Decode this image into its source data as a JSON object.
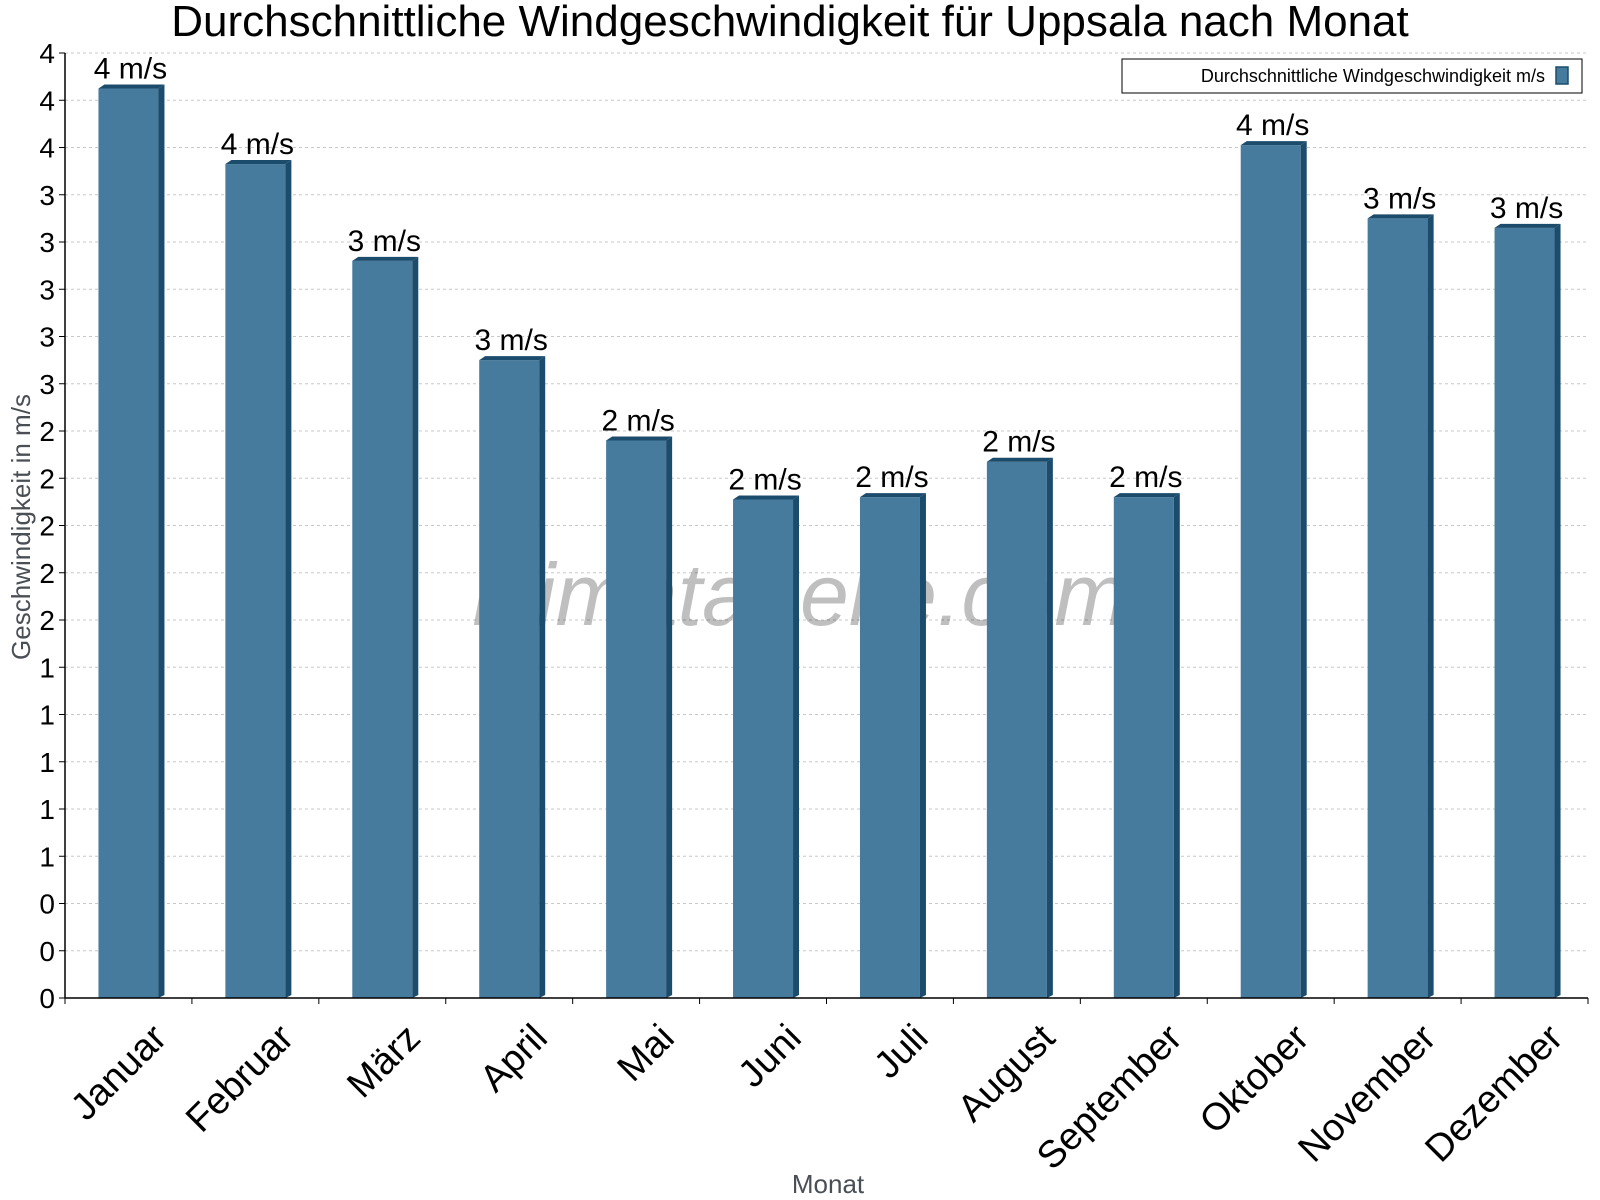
{
  "chart_data": {
    "type": "bar",
    "title": "Durchschnittliche Windgeschwindigkeit für Uppsala nach Monat",
    "xlabel": "Monat",
    "ylabel": "Geschwindigkeit in m/s",
    "categories": [
      "Januar",
      "Februar",
      "März",
      "April",
      "Mai",
      "Juni",
      "Juli",
      "August",
      "September",
      "Oktober",
      "November",
      "Dezember"
    ],
    "series": [
      {
        "name": "Durchschnittliche Windgeschwindigkeit m/s",
        "values": [
          3.85,
          3.53,
          3.12,
          2.7,
          2.36,
          2.11,
          2.12,
          2.27,
          2.12,
          3.61,
          3.3,
          3.26
        ],
        "data_labels": [
          "4 m/s",
          "4 m/s",
          "3 m/s",
          "3 m/s",
          "2 m/s",
          "2 m/s",
          "2 m/s",
          "2 m/s",
          "2 m/s",
          "4 m/s",
          "3 m/s",
          "3 m/s"
        ]
      }
    ],
    "ylim": [
      0,
      4
    ],
    "ytick_values": [
      0,
      0.2,
      0.4,
      0.6,
      0.8,
      1.0,
      1.2,
      1.4,
      1.6,
      1.8,
      2.0,
      2.2,
      2.4,
      2.6,
      2.8,
      3.0,
      3.2,
      3.4,
      3.6,
      3.8,
      4.0
    ],
    "ytick_labels": [
      "0",
      "0",
      "0",
      "1",
      "1",
      "1",
      "1",
      "1",
      "2",
      "2",
      "2",
      "2",
      "2",
      "3",
      "3",
      "3",
      "3",
      "3",
      "4",
      "4",
      "4"
    ],
    "grid": true,
    "legend_position": "top-right",
    "bar_color": "#467b9e",
    "bar_side_color": "#1c4c6c",
    "bar_top_color": "#1c4c6c",
    "watermark": "klimatabelle.com"
  }
}
